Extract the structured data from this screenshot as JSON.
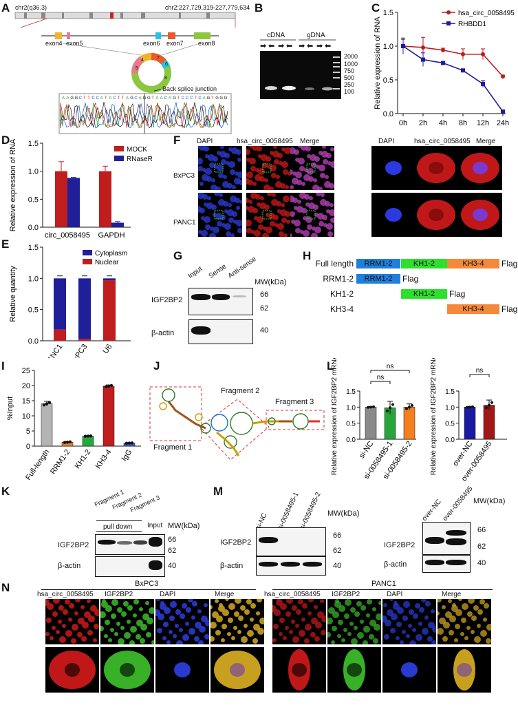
{
  "panels": {
    "A": {
      "label": "A",
      "chrom": "chr2(q36.3)",
      "coords": "chr2:227,729,319-227,779,634",
      "exons": [
        "exon4",
        "exon5",
        "exon6",
        "exon7",
        "exon8"
      ],
      "ring_nums": [
        "4",
        "5",
        "6",
        "7",
        "8"
      ],
      "bsj": "Back splice junction"
    },
    "B": {
      "label": "B",
      "cdna": "cDNA",
      "gdna": "gDNA",
      "ladder": [
        "2000",
        "1000",
        "750",
        "500",
        "250",
        "100"
      ]
    },
    "C": {
      "label": "C",
      "ylabel": "Relative expression of RNA",
      "chart_data": {
        "type": "line",
        "x": [
          "0h",
          "2h",
          "4h",
          "8h",
          "12h",
          "24h"
        ],
        "series": [
          {
            "name": "hsa_circ_0058495",
            "values": [
              1.0,
              0.98,
              0.94,
              0.88,
              0.88,
              0.55
            ],
            "err": [
              0.1,
              0.15,
              0.03,
              0.08,
              0.08,
              0.02
            ]
          },
          {
            "name": "RHBDD1",
            "values": [
              1.0,
              0.8,
              0.75,
              0.64,
              0.44,
              0.03
            ],
            "err": [
              0.12,
              0.1,
              0.02,
              0.02,
              0.05,
              0.02
            ]
          }
        ],
        "ylim": [
          0,
          1.5
        ],
        "yticks": [
          "0.0",
          "0.5",
          "1.0",
          "1.5"
        ]
      }
    },
    "D": {
      "label": "D",
      "ylabel": "Relative expression of RNA",
      "chart_data": {
        "type": "bar",
        "categories": [
          "circ_0058495",
          "GAPDH"
        ],
        "series": [
          {
            "name": "MOCK",
            "values": [
              1.0,
              1.0
            ],
            "err": [
              0.17,
              0.09
            ]
          },
          {
            "name": "RNaseR",
            "values": [
              0.88,
              0.08
            ],
            "err": [
              0.01,
              0.02
            ]
          }
        ],
        "ylim": [
          0,
          1.5
        ],
        "yticks": [
          "0.0",
          "0.5",
          "1.0",
          "1.5"
        ]
      }
    },
    "E": {
      "label": "E",
      "ylabel": "Relative quantity",
      "chart_data": {
        "type": "bar",
        "stacked": true,
        "categories": [
          "PANC1",
          "BxPC3",
          "U6"
        ],
        "series": [
          {
            "name": "Cytoplasm",
            "values": [
              0.82,
              0.97,
              0.03
            ]
          },
          {
            "name": "Nuclear",
            "values": [
              0.18,
              0.03,
              0.97
            ]
          }
        ],
        "ylim": [
          0,
          1.5
        ],
        "yticks": [
          "0.0",
          "0.5",
          "1.0",
          "1.5"
        ]
      }
    },
    "F": {
      "label": "F",
      "cols": [
        "DAPI",
        "hsa_circ_0058495",
        "Merge",
        "DAPI",
        "hsa_circ_0058495",
        "Merge"
      ],
      "rows": [
        "BxPC3",
        "PANC1"
      ]
    },
    "G": {
      "label": "G",
      "cols": [
        "Input",
        "Sense",
        "Anti-sense"
      ],
      "mw": "MW(kDa)",
      "rows": [
        "IGF2BP2",
        "β-actin"
      ],
      "marks": [
        "66",
        "62",
        "40"
      ]
    },
    "H": {
      "label": "H",
      "rows": [
        {
          "name": "Full length",
          "domains": [
            "RRM1-2",
            "KH1-2",
            "KH3-4"
          ],
          "tag": "Flag"
        },
        {
          "name": "RRM1-2",
          "domains": [
            "RRM1-2"
          ],
          "tag": "Flag"
        },
        {
          "name": "KH1-2",
          "domains": [
            "KH1-2"
          ],
          "tag": "Flag"
        },
        {
          "name": "KH3-4",
          "domains": [
            "KH3-4"
          ],
          "tag": "Flag"
        }
      ],
      "colors": {
        "RRM1-2": "#1f7fdc",
        "KH1-2": "#2ee02e",
        "KH3-4": "#f5893a"
      }
    },
    "I": {
      "label": "I",
      "ylabel": "%Input",
      "chart_data": {
        "type": "bar",
        "categories": [
          "Full-length",
          "RRM1-2",
          "KH1-2",
          "KH3-4",
          "IgG"
        ],
        "values": [
          14,
          1.3,
          3.3,
          19.8,
          1.0
        ],
        "err": [
          0.8,
          0.2,
          0.1,
          0.4,
          0.1
        ],
        "colors": [
          "#b4b4b4",
          "#f07a2a",
          "#22aa3a",
          "#c01e1e",
          "#3a5fcf"
        ],
        "ylim": [
          0,
          25
        ],
        "yticks": [
          "0",
          "5",
          "10",
          "15",
          "20",
          "25"
        ]
      }
    },
    "J": {
      "label": "J",
      "fragments": [
        "Fragment 1",
        "Fragment 2",
        "Fragment 3"
      ]
    },
    "K": {
      "label": "K",
      "cols": [
        "Fragment 1",
        "Fragment 2",
        "Fragment 3",
        "Input"
      ],
      "pulldown": "pull down",
      "mw": "MW(kDa)",
      "rows": [
        "IGF2BP2",
        "β-actin"
      ],
      "marks": [
        "66",
        "62",
        "40"
      ]
    },
    "L": {
      "label": "L",
      "ylabel": "Relative expression of IGF2BP2 mRNA",
      "ns": "ns",
      "chart_data": [
        {
          "type": "bar",
          "categories": [
            "si-NC",
            "si-0058495-1",
            "si-0058495-2"
          ],
          "values": [
            1.0,
            0.98,
            1.0
          ],
          "err": [
            0.02,
            0.2,
            0.1
          ],
          "colors": [
            "#8a8a8a",
            "#27a53a",
            "#f57f1f"
          ],
          "ylim": [
            0,
            1.5
          ],
          "yticks": [
            "0.0",
            "0.5",
            "1.0",
            "1.5"
          ]
        },
        {
          "type": "bar",
          "categories": [
            "over-NC",
            "over-0058495"
          ],
          "values": [
            1.0,
            1.06
          ],
          "err": [
            0.02,
            0.16
          ],
          "colors": [
            "#1a1aa0",
            "#a01818"
          ],
          "ylim": [
            0,
            1.5
          ],
          "yticks": [
            "0.0",
            "0.5",
            "1.0",
            "1.5"
          ]
        }
      ]
    },
    "M": {
      "label": "M",
      "left_cols": [
        "si-NC",
        "si-0058495-1",
        "si-0058495-2"
      ],
      "right_cols": [
        "over-NC",
        "over-0058495"
      ],
      "mw": "MW(kDa)",
      "rows": [
        "IGF2BP2",
        "β-actin"
      ],
      "marks": [
        "66",
        "62",
        "40"
      ]
    },
    "N": {
      "label": "N",
      "groups": [
        "BxPC3",
        "PANC1"
      ],
      "cols": [
        "hsa_circ_0058495",
        "IGF2BP2",
        "DAPI",
        "Merge"
      ]
    }
  },
  "colors": {
    "red": "#c01e1e",
    "blue": "#1f1f9a",
    "circ_line": "#b81c1c",
    "rhbdd_line": "#1c1c9c"
  }
}
